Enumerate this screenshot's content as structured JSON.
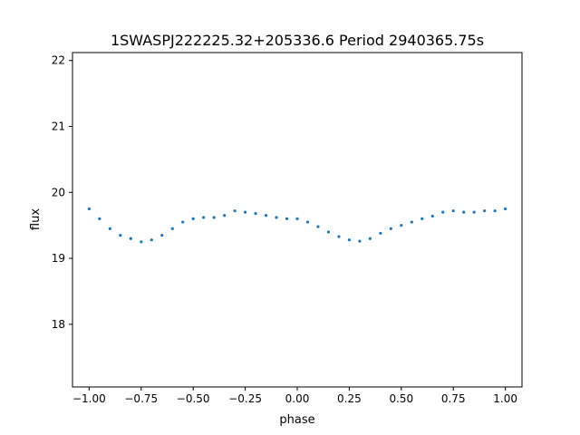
{
  "chart_data": {
    "type": "scatter",
    "title": "1SWASPJ222225.32+205336.6 Period 2940365.75s",
    "xlabel": "phase",
    "ylabel": "flux",
    "xlim": [
      -1.08,
      1.08
    ],
    "ylim": [
      17.05,
      22.12
    ],
    "xticks": [
      -1.0,
      -0.75,
      -0.5,
      -0.25,
      0.0,
      0.25,
      0.5,
      0.75,
      1.0
    ],
    "xtick_labels": [
      "−1.00",
      "−0.75",
      "−0.50",
      "−0.25",
      "0.00",
      "0.25",
      "0.50",
      "0.75",
      "1.00"
    ],
    "yticks": [
      18,
      19,
      20,
      21,
      22
    ],
    "ytick_labels": [
      "18",
      "19",
      "20",
      "21",
      "22"
    ],
    "grid": false,
    "marker_color": "#1f77b4",
    "series": [
      {
        "x": [
          -1.0,
          -0.95,
          -0.9,
          -0.85,
          -0.8,
          -0.75,
          -0.7,
          -0.65,
          -0.6,
          -0.55,
          -0.5,
          -0.45,
          -0.4,
          -0.35,
          -0.3,
          -0.25,
          -0.2,
          -0.15,
          -0.1,
          -0.05,
          0.0,
          0.05,
          0.1,
          0.15,
          0.2,
          0.25,
          0.3,
          0.35,
          0.4,
          0.45,
          0.5,
          0.55,
          0.6,
          0.65,
          0.7,
          0.75,
          0.8,
          0.85,
          0.9,
          0.95,
          1.0
        ],
        "y": [
          19.75,
          19.6,
          19.45,
          19.35,
          19.3,
          19.25,
          19.28,
          19.35,
          19.45,
          19.55,
          19.6,
          19.62,
          19.62,
          19.65,
          19.72,
          19.7,
          19.68,
          19.65,
          19.62,
          19.6,
          19.6,
          19.55,
          19.48,
          19.4,
          19.33,
          19.28,
          19.26,
          19.3,
          19.38,
          19.45,
          19.5,
          19.55,
          19.6,
          19.64,
          19.7,
          19.72,
          19.7,
          19.7,
          19.72,
          19.72,
          19.75
        ]
      }
    ]
  }
}
